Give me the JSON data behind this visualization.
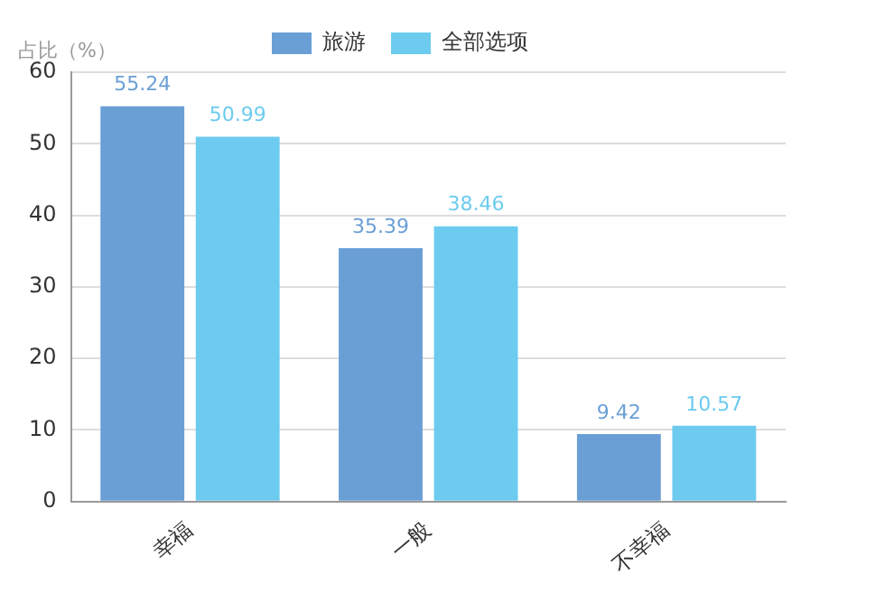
{
  "chart_data": {
    "type": "bar",
    "ylabel": "占比（%）",
    "categories": [
      "幸福",
      "一般",
      "不幸福"
    ],
    "series": [
      {
        "name": "旅游",
        "color": "#6a9fd6",
        "values": [
          55.24,
          35.39,
          9.42
        ]
      },
      {
        "name": "全部选项",
        "color": "#6dcbef",
        "values": [
          50.99,
          38.46,
          10.57
        ]
      }
    ],
    "ylim": [
      0,
      60
    ],
    "yticks": [
      0,
      10,
      20,
      30,
      40,
      50,
      60
    ],
    "grid": "y",
    "legend": "top",
    "data_labels": true
  }
}
